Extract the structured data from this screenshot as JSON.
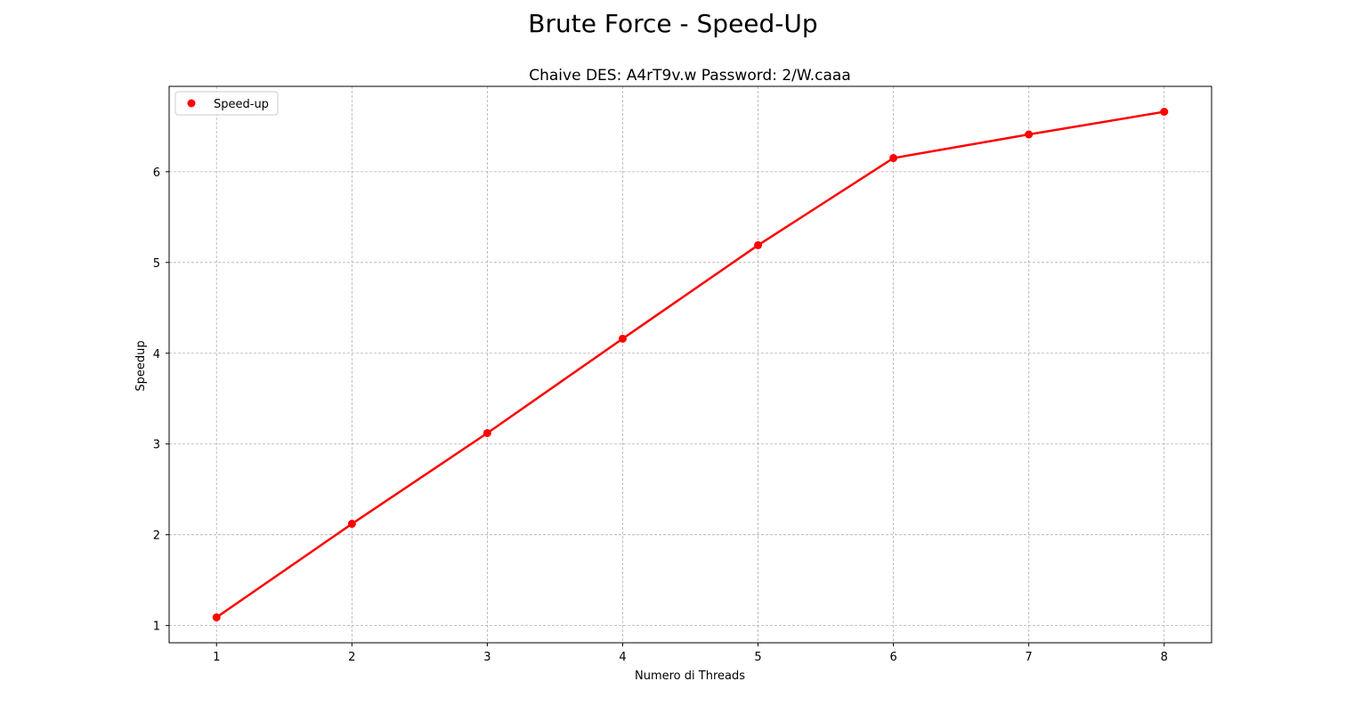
{
  "figure": {
    "suptitle": "Brute Force - Speed-Up"
  },
  "chart_data": {
    "type": "line",
    "title": "Chaive DES: A4rT9v.w Password: 2/W.caaa",
    "xlabel": "Numero di Threads",
    "ylabel": "Speedup",
    "x": [
      1,
      2,
      3,
      4,
      5,
      6,
      7,
      8
    ],
    "series": [
      {
        "name": "Speed-up",
        "values": [
          1.09,
          2.12,
          3.12,
          4.16,
          5.19,
          6.15,
          6.41,
          6.66
        ],
        "color": "#ff0000",
        "marker": "circle"
      }
    ],
    "x_ticks": [
      1,
      2,
      3,
      4,
      5,
      6,
      7,
      8
    ],
    "y_ticks": [
      1,
      2,
      3,
      4,
      5,
      6
    ],
    "xlim": [
      0.65,
      8.35
    ],
    "ylim": [
      0.81,
      6.94
    ],
    "grid": true,
    "grid_style": "dashed",
    "grid_color": "#b0b0b0",
    "legend_position": "upper-left"
  }
}
